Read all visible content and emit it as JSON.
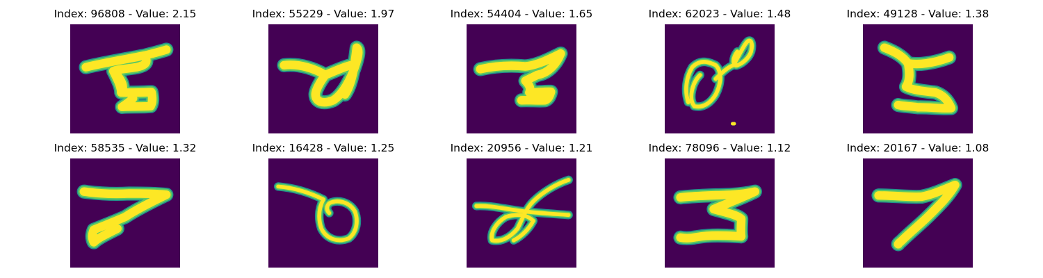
{
  "colors": {
    "background": "#440154",
    "stroke_edge": "#21918c",
    "stroke_mid": "#5ec962",
    "stroke_core": "#fde725"
  },
  "panels": [
    {
      "title": "Index: 96808 - Value: 2.15",
      "index": 96808,
      "value": 2.15
    },
    {
      "title": "Index: 55229 - Value: 1.97",
      "index": 55229,
      "value": 1.97
    },
    {
      "title": "Index: 54404 - Value: 1.65",
      "index": 54404,
      "value": 1.65
    },
    {
      "title": "Index: 62023 - Value: 1.48",
      "index": 62023,
      "value": 1.48
    },
    {
      "title": "Index: 49128 - Value: 1.38",
      "index": 49128,
      "value": 1.38
    },
    {
      "title": "Index: 58535 - Value: 1.32",
      "index": 58535,
      "value": 1.32
    },
    {
      "title": "Index: 16428 - Value: 1.25",
      "index": 16428,
      "value": 1.25
    },
    {
      "title": "Index: 20956 - Value: 1.21",
      "index": 20956,
      "value": 1.21
    },
    {
      "title": "Index: 78096 - Value: 1.12",
      "index": 78096,
      "value": 1.12
    },
    {
      "title": "Index: 20167 - Value: 1.08",
      "index": 20167,
      "value": 1.08
    }
  ]
}
